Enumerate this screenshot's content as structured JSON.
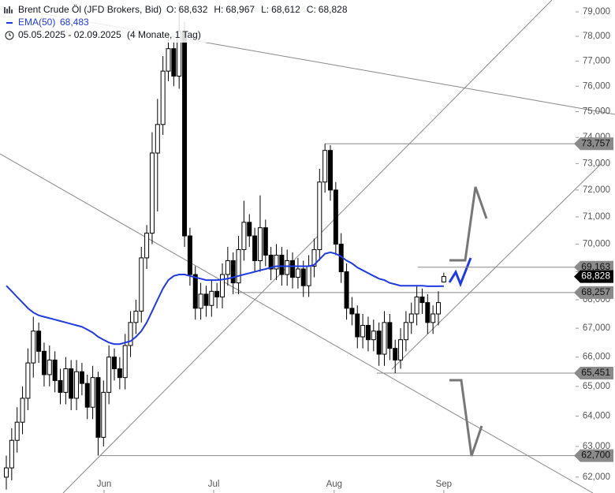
{
  "chart_data": {
    "type": "candlestick",
    "title": "Brent Crude Öl (JFD Brokers, Bid)",
    "ohlc": [
      {
        "name": "O:",
        "value": 68.632,
        "label": "68,632"
      },
      {
        "name": "H:",
        "value": 68.967,
        "label": "68,967"
      },
      {
        "name": "L:",
        "value": 68.612,
        "label": "68,612"
      },
      {
        "name": "C:",
        "value": 68.828,
        "label": "68,828"
      }
    ],
    "date_range": "05.05.2025 - 02.09.2025",
    "period": "(4 Monate, 1 Tag)",
    "open": [
      62.0,
      62.3,
      63.2,
      63.8,
      64.6,
      65.8,
      66.9,
      66.2,
      65.4,
      65.9,
      65.2,
      64.8,
      65.6,
      64.6,
      65.5,
      65.1,
      64.3,
      65.3,
      63.3,
      64.8,
      66.0,
      65.6,
      65.3,
      66.4,
      67.2,
      67.6,
      69.5,
      70.4,
      73.4,
      74.5,
      76.6,
      77.5,
      76.4,
      78.2,
      70.3,
      68.9,
      67.7,
      68.2,
      67.8,
      68.3,
      68.1,
      68.9,
      69.4,
      68.6,
      69.8,
      70.8,
      70.3,
      69.4,
      70.6,
      69.6,
      69.1,
      69.6,
      68.9,
      69.4,
      68.8,
      69.1,
      68.5,
      69.2,
      69.8,
      72.3,
      73.5,
      72.0,
      70.0,
      69.0,
      67.7,
      67.5,
      66.7,
      67.1,
      66.6,
      66.9,
      66.1,
      67.2,
      66.3,
      65.9,
      66.6,
      67.2,
      67.5,
      68.1,
      67.9,
      67.2,
      67.5,
      68.632
    ],
    "high": [
      62.7,
      63.6,
      64.3,
      65.0,
      66.3,
      67.4,
      67.2,
      66.5,
      66.4,
      66.2,
      65.6,
      66.0,
      65.9,
      65.9,
      65.8,
      65.4,
      65.7,
      65.5,
      65.2,
      66.4,
      66.3,
      66.0,
      66.8,
      67.6,
      68.0,
      69.9,
      70.7,
      74.2,
      75.5,
      77.2,
      78.1,
      77.8,
      79.4,
      78.6,
      70.6,
      69.2,
      68.6,
      68.5,
      68.7,
      68.6,
      69.3,
      69.9,
      69.7,
      70.3,
      71.6,
      71.1,
      70.6,
      71.8,
      70.9,
      69.9,
      70.0,
      69.9,
      69.8,
      69.7,
      69.5,
      69.4,
      69.6,
      70.2,
      72.8,
      73.757,
      73.7,
      72.3,
      70.4,
      69.3,
      68.1,
      67.8,
      67.5,
      67.4,
      67.3,
      67.2,
      67.6,
      67.5,
      66.6,
      67.0,
      67.6,
      67.9,
      68.5,
      68.4,
      68.2,
      67.8,
      68.3,
      68.967
    ],
    "low": [
      61.6,
      61.9,
      62.8,
      63.4,
      64.2,
      65.3,
      65.8,
      65.0,
      65.0,
      64.8,
      64.4,
      64.4,
      64.2,
      64.2,
      64.7,
      63.9,
      63.9,
      62.7,
      63.0,
      64.4,
      65.2,
      64.9,
      64.9,
      66.0,
      66.8,
      67.2,
      69.1,
      70.0,
      71.2,
      74.1,
      76.2,
      76.0,
      75.9,
      69.9,
      68.5,
      67.3,
      67.3,
      67.4,
      67.4,
      67.7,
      67.7,
      68.5,
      68.2,
      68.2,
      69.4,
      69.9,
      69.0,
      69.0,
      69.2,
      68.7,
      68.7,
      68.5,
      68.5,
      68.4,
      68.4,
      68.1,
      68.1,
      68.8,
      69.4,
      71.9,
      71.6,
      69.6,
      68.6,
      67.3,
      67.1,
      66.3,
      66.3,
      66.2,
      66.2,
      65.7,
      65.7,
      65.9,
      65.451,
      65.6,
      66.2,
      66.8,
      67.1,
      67.5,
      66.8,
      66.8,
      67.1,
      68.612
    ],
    "close": [
      62.3,
      63.2,
      63.8,
      64.6,
      65.8,
      66.9,
      66.2,
      65.4,
      65.9,
      65.2,
      64.8,
      65.6,
      64.6,
      65.5,
      65.1,
      64.3,
      65.3,
      63.3,
      64.8,
      66.0,
      65.6,
      65.3,
      66.4,
      67.2,
      67.6,
      69.5,
      70.4,
      73.4,
      74.5,
      76.6,
      77.5,
      76.4,
      78.2,
      70.3,
      68.9,
      67.7,
      68.2,
      67.8,
      68.3,
      68.1,
      68.9,
      69.4,
      68.6,
      69.8,
      70.8,
      70.3,
      69.4,
      70.6,
      69.6,
      69.1,
      69.6,
      68.9,
      69.4,
      68.8,
      69.1,
      68.5,
      69.2,
      69.8,
      72.3,
      73.5,
      72.0,
      70.0,
      69.0,
      67.7,
      67.5,
      66.7,
      67.1,
      66.6,
      66.9,
      66.1,
      67.2,
      66.3,
      65.9,
      66.6,
      67.2,
      67.5,
      68.1,
      67.9,
      67.2,
      67.5,
      67.9,
      68.828
    ],
    "series": [
      {
        "name": "EMA(50)",
        "color": "#1f3be0",
        "last_label": "68,483",
        "values": [
          68.5,
          68.3,
          68.1,
          67.9,
          67.7,
          67.55,
          67.45,
          67.4,
          67.35,
          67.3,
          67.25,
          67.2,
          67.15,
          67.1,
          67.05,
          66.95,
          66.85,
          66.7,
          66.6,
          66.5,
          66.45,
          66.45,
          66.5,
          66.55,
          66.7,
          66.9,
          67.2,
          67.6,
          68.0,
          68.4,
          68.7,
          68.85,
          68.9,
          68.9,
          68.85,
          68.8,
          68.75,
          68.7,
          68.7,
          68.7,
          68.72,
          68.75,
          68.8,
          68.85,
          68.9,
          68.95,
          69.0,
          69.05,
          69.1,
          69.15,
          69.2,
          69.2,
          69.2,
          69.2,
          69.2,
          69.2,
          69.2,
          69.25,
          69.45,
          69.65,
          69.7,
          69.65,
          69.55,
          69.4,
          69.3,
          69.15,
          69.05,
          68.95,
          68.85,
          68.75,
          68.7,
          68.6,
          68.55,
          68.5,
          68.5,
          68.5,
          68.5,
          68.5,
          68.48,
          68.48,
          68.48,
          68.483
        ]
      }
    ],
    "up_color": "#ffffff",
    "down_color": "#000000",
    "log_scale": true,
    "xlim": [
      -1.168,
      105.4
    ],
    "xticks": [
      {
        "value": 18.1,
        "label": "Jun"
      },
      {
        "value": 38.4,
        "label": "Jul"
      },
      {
        "value": 60.7,
        "label": "Aug"
      },
      {
        "value": 81,
        "label": "Sep"
      }
    ],
    "ylim": [
      61.49,
      79.49
    ],
    "yticks": [
      {
        "value": 62,
        "label": "62,000"
      },
      {
        "value": 63,
        "label": "63,000"
      },
      {
        "value": 64,
        "label": "64,000"
      },
      {
        "value": 65,
        "label": "65,000"
      },
      {
        "value": 66,
        "label": "66,000"
      },
      {
        "value": 67,
        "label": "67,000"
      },
      {
        "value": 68,
        "label": "68,000"
      },
      {
        "value": 69,
        "label": "69,000"
      },
      {
        "value": 70,
        "label": "70,000"
      },
      {
        "value": 71,
        "label": "71,000"
      },
      {
        "value": 72,
        "label": "72,000"
      },
      {
        "value": 73,
        "label": "73,000"
      },
      {
        "value": 74,
        "label": "74,000"
      },
      {
        "value": 75,
        "label": "75,000"
      },
      {
        "value": 76,
        "label": "76,000"
      },
      {
        "value": 77,
        "label": "77,000"
      },
      {
        "value": 78,
        "label": "78,000"
      },
      {
        "value": 79,
        "label": "79,000"
      }
    ],
    "levels": [
      {
        "value": 73.757,
        "label": "73,757"
      },
      {
        "value": 69.163,
        "label": "69,163"
      },
      {
        "value": 68.257,
        "label": "68,257"
      },
      {
        "value": 65.451,
        "label": "65,451"
      },
      {
        "value": 62.7,
        "label": "62,700"
      }
    ]
  }
}
